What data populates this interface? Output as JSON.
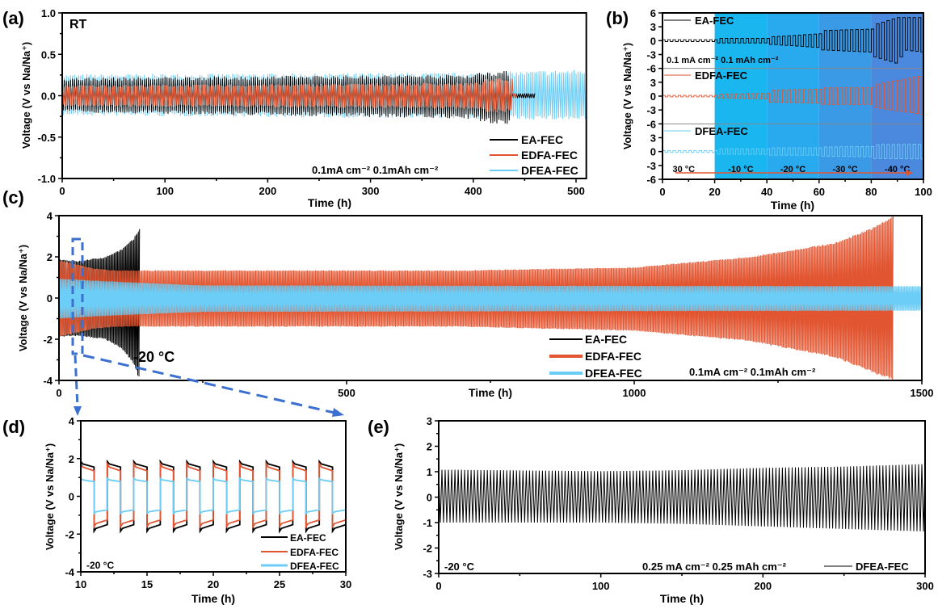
{
  "colors": {
    "EA-FEC": "#000000",
    "EDFA-FEC": "#e15531",
    "DFEA-FEC": "#6ccdf6",
    "zoom_box": "#3b6fd0",
    "temperature_arrow": "#e15531"
  },
  "chart_data": [
    {
      "id": "a",
      "panel_label": "(a)",
      "type": "line",
      "xlabel": "Time (h)",
      "ylabel": "Voltage (V vs Na/Na⁺)",
      "xlim": [
        0,
        510
      ],
      "ylim": [
        -1,
        1
      ],
      "xticks": [
        "0",
        "100",
        "200",
        "300",
        "400",
        "500"
      ],
      "yticks": [
        "-1.0",
        "-0.5",
        "0.0",
        "0.5",
        "1.0"
      ],
      "annotations": [
        "RT",
        "0.1mA cm⁻² 0.1mAh cm⁻²"
      ],
      "legend": [
        "EA-FEC",
        "EDFA-FEC",
        "DFEA-FEC"
      ],
      "legend_position": "bottom-right",
      "series": [
        {
          "name": "EA-FEC",
          "cycle_period_h": 2,
          "envelope_v": [
            [
              0,
              0.22,
              -0.2
            ],
            [
              200,
              0.24,
              -0.24
            ],
            [
              400,
              0.26,
              -0.28
            ],
            [
              410,
              0.3,
              -0.33
            ],
            [
              435,
              0.3,
              -0.35
            ],
            [
              436,
              0.03,
              -0.03
            ],
            [
              460,
              0.03,
              -0.03
            ]
          ]
        },
        {
          "name": "EDFA-FEC",
          "cycle_period_h": 2,
          "envelope_v": [
            [
              0,
              0.13,
              -0.13
            ],
            [
              200,
              0.14,
              -0.14
            ],
            [
              408,
              0.16,
              -0.16
            ],
            [
              410,
              0.2,
              -0.2
            ],
            [
              438,
              0.22,
              -0.2
            ],
            [
              439,
              0.03,
              -0.03
            ],
            [
              442,
              0.03,
              -0.03
            ]
          ]
        },
        {
          "name": "DFEA-FEC",
          "cycle_period_h": 2,
          "envelope_v": [
            [
              0,
              0.26,
              -0.24
            ],
            [
              200,
              0.27,
              -0.26
            ],
            [
              400,
              0.28,
              -0.28
            ],
            [
              510,
              0.32,
              -0.3
            ]
          ]
        }
      ]
    },
    {
      "id": "b",
      "panel_label": "(b)",
      "type": "line",
      "xlabel": "Time (h)",
      "ylabel": "Voltage (V vs Na/Na⁺)",
      "xlim": [
        0,
        100
      ],
      "xticks": [
        "0",
        "20",
        "40",
        "60",
        "80",
        "100"
      ],
      "ytick_labels": [
        [
          "6",
          "3",
          "0",
          "-3",
          "-6"
        ],
        [
          "3",
          "0",
          "-3",
          "-6"
        ],
        [
          "3",
          "0",
          "-3",
          "-6"
        ]
      ],
      "annotations": [
        "0.1 mA cm⁻² 0.1 mAh cm⁻²"
      ],
      "temperature_stages": [
        {
          "from_h": 0,
          "to_h": 20,
          "label": "30 °C",
          "color": "#ffffff"
        },
        {
          "from_h": 20,
          "to_h": 40,
          "label": "-10 °C",
          "color": "#19b6f0"
        },
        {
          "from_h": 40,
          "to_h": 60,
          "label": "-20 °C",
          "color": "#29a9ee"
        },
        {
          "from_h": 60,
          "to_h": 80,
          "label": "-30 °C",
          "color": "#3a9ae6"
        },
        {
          "from_h": 80,
          "to_h": 100,
          "label": "-40 °C",
          "color": "#4a89dd"
        }
      ],
      "legend": [
        "EA-FEC",
        "EDFA-FEC",
        "DFEA-FEC"
      ],
      "series": [
        {
          "name": "EA-FEC",
          "cycle_period_h": 2,
          "envelope_v": [
            [
              0,
              0.2,
              -0.2
            ],
            [
              20,
              0.2,
              -0.2
            ],
            [
              21,
              0.5,
              -0.5
            ],
            [
              40,
              0.5,
              -0.5
            ],
            [
              41,
              0.8,
              -0.8
            ],
            [
              60,
              1.5,
              -1.5
            ],
            [
              61,
              2.2,
              -2
            ],
            [
              80,
              2.5,
              -2.5
            ],
            [
              81,
              3.5,
              -3.5
            ],
            [
              90,
              5,
              -5
            ],
            [
              92,
              5,
              -2
            ],
            [
              100,
              5,
              -2.5
            ]
          ]
        },
        {
          "name": "EDFA-FEC",
          "cycle_period_h": 2,
          "envelope_v": [
            [
              0,
              0.15,
              -0.15
            ],
            [
              20,
              0.15,
              -0.15
            ],
            [
              21,
              0.4,
              -0.4
            ],
            [
              40,
              0.6,
              -0.6
            ],
            [
              41,
              1.3,
              -1.3
            ],
            [
              60,
              1.5,
              -1.5
            ],
            [
              61,
              1.8,
              -1.8
            ],
            [
              80,
              1.8,
              -1.8
            ],
            [
              81,
              2.5,
              -2.5
            ],
            [
              100,
              4.5,
              -4
            ]
          ]
        },
        {
          "name": "DFEA-FEC",
          "cycle_period_h": 2,
          "envelope_v": [
            [
              0,
              0.2,
              -0.2
            ],
            [
              20,
              0.2,
              -0.2
            ],
            [
              21,
              0.6,
              -0.6
            ],
            [
              40,
              0.6,
              -0.6
            ],
            [
              41,
              0.8,
              -0.8
            ],
            [
              60,
              0.8,
              -0.8
            ],
            [
              61,
              1,
              -1
            ],
            [
              80,
              1.1,
              -1.1
            ],
            [
              81,
              1.5,
              -1.5
            ],
            [
              100,
              1.6,
              -1.6
            ]
          ]
        }
      ]
    },
    {
      "id": "c",
      "panel_label": "(c)",
      "type": "line",
      "xlabel": "Time (h)",
      "ylabel": "Voltage (V vs Na/Na⁺)",
      "xlim": [
        0,
        1500
      ],
      "ylim": [
        -4,
        4
      ],
      "xticks": [
        "0",
        "500",
        "1000",
        "1500"
      ],
      "yticks": [
        "-4",
        "-2",
        "0",
        "2",
        "4"
      ],
      "annotations": [
        "-20 °C",
        "0.1mA cm⁻² 0.1mAh cm⁻²"
      ],
      "legend": [
        "EA-FEC",
        "EDFA-FEC",
        "DFEA-FEC"
      ],
      "legend_position": "bottom-center",
      "zoom_region_h": [
        10,
        30
      ],
      "series": [
        {
          "name": "EA-FEC",
          "cycle_period_h": 2,
          "envelope_v": [
            [
              0,
              1.9,
              -1.9
            ],
            [
              30,
              1.8,
              -1.85
            ],
            [
              80,
              2.0,
              -2.0
            ],
            [
              110,
              2.4,
              -2.5
            ],
            [
              130,
              2.9,
              -3.2
            ],
            [
              140,
              3.4,
              -4
            ]
          ]
        },
        {
          "name": "EDFA-FEC",
          "cycle_period_h": 2,
          "envelope_v": [
            [
              0,
              1.85,
              -1.9
            ],
            [
              60,
              1.45,
              -1.5
            ],
            [
              100,
              1.35,
              -1.4
            ],
            [
              700,
              1.35,
              -1.4
            ],
            [
              1000,
              1.5,
              -1.6
            ],
            [
              1200,
              2.0,
              -2.1
            ],
            [
              1350,
              2.7,
              -2.9
            ],
            [
              1420,
              3.5,
              -3.7
            ],
            [
              1450,
              4,
              -4
            ]
          ]
        },
        {
          "name": "DFEA-FEC",
          "cycle_period_h": 2,
          "envelope_v": [
            [
              0,
              0.95,
              -1.0
            ],
            [
              100,
              0.8,
              -0.85
            ],
            [
              250,
              0.62,
              -0.68
            ],
            [
              1500,
              0.58,
              -0.62
            ]
          ]
        }
      ]
    },
    {
      "id": "d",
      "panel_label": "(d)",
      "type": "line",
      "xlabel": "Time (h)",
      "ylabel": "Voltage (V vs Na/Na⁺)",
      "xlim": [
        10,
        30
      ],
      "ylim": [
        -4,
        4
      ],
      "xticks": [
        "10",
        "15",
        "20",
        "25",
        "30"
      ],
      "yticks": [
        "-4",
        "-2",
        "0",
        "2",
        "4"
      ],
      "annotations": [
        "-20 °C"
      ],
      "legend": [
        "EA-FEC",
        "EDFA-FEC",
        "DFEA-FEC"
      ],
      "legend_position": "bottom-right",
      "series": [
        {
          "name": "EA-FEC",
          "cycle_period_h": 2,
          "charge_v": [
            1.85,
            1.55
          ],
          "discharge_v": [
            -1.85,
            -1.5
          ]
        },
        {
          "name": "EDFA-FEC",
          "cycle_period_h": 2,
          "charge_v": [
            1.72,
            1.35
          ],
          "discharge_v": [
            -1.6,
            -1.25
          ]
        },
        {
          "name": "DFEA-FEC",
          "cycle_period_h": 2,
          "charge_v": [
            0.95,
            0.78
          ],
          "discharge_v": [
            -0.9,
            -0.72
          ]
        }
      ]
    },
    {
      "id": "e",
      "panel_label": "(e)",
      "type": "line",
      "xlabel": "Time (h)",
      "ylabel": "Voltage (V vs Na/Na⁺)",
      "xlim": [
        0,
        300
      ],
      "ylim": [
        -3,
        3
      ],
      "xticks": [
        "0",
        "100",
        "200",
        "300"
      ],
      "yticks": [
        "-3",
        "-2",
        "-1",
        "0",
        "1",
        "2",
        "3"
      ],
      "annotations": [
        "-20 °C",
        "0.25 mA cm⁻² 0.25 mAh cm⁻²"
      ],
      "legend": [
        "DFEA-FEC"
      ],
      "legend_position": "bottom-right",
      "series": [
        {
          "name": "DFEA-FEC",
          "color": "#000000",
          "cycle_period_h": 2,
          "envelope_v": [
            [
              0,
              1.08,
              -1.0
            ],
            [
              100,
              1.02,
              -1.0
            ],
            [
              150,
              1.06,
              -1.05
            ],
            [
              200,
              1.15,
              -1.15
            ],
            [
              250,
              1.2,
              -1.25
            ],
            [
              300,
              1.3,
              -1.35
            ]
          ]
        }
      ]
    }
  ]
}
